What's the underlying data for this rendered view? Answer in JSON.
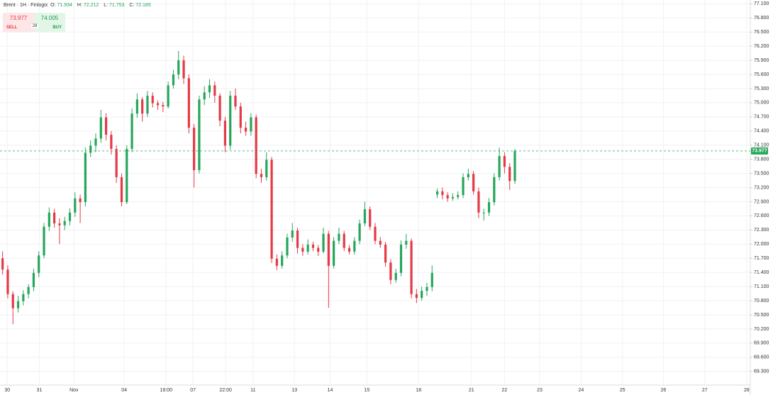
{
  "chart_data": {
    "type": "candlestick",
    "title": "Brent · 1H · Finlogix",
    "ohlc_legend": [
      {
        "label": "O:",
        "value": 71.934
      },
      {
        "label": "H:",
        "value": 72.212
      },
      {
        "label": "L:",
        "value": 71.753
      },
      {
        "label": "C:",
        "value": 72.185
      }
    ],
    "trade_panel": {
      "sell_price": 73.977,
      "buy_price": 74.005,
      "sell_label": "SELL",
      "buy_label": "BUY",
      "spread": 28
    },
    "up_color": "#26a65b",
    "down_color": "#e53945",
    "grid": true,
    "x": [
      0,
      1,
      2,
      3,
      4,
      5,
      6,
      7,
      8,
      9,
      10,
      11,
      12,
      13,
      14,
      15,
      16,
      17,
      18,
      19,
      20,
      21,
      22,
      23,
      24,
      25,
      26,
      27,
      28,
      29,
      30,
      31,
      32,
      33,
      34,
      35,
      36,
      37,
      38,
      39,
      40,
      41,
      42,
      43,
      44,
      45,
      46,
      47,
      48,
      49,
      50,
      51,
      52,
      53,
      54,
      55,
      56,
      57,
      58,
      59,
      60,
      61,
      62,
      63,
      64,
      65,
      66,
      67,
      68,
      69,
      70,
      71,
      72,
      73,
      74,
      75,
      76,
      77,
      78,
      79,
      80,
      81,
      82,
      83,
      84,
      85,
      86,
      87,
      88,
      89,
      90,
      91,
      92,
      93,
      94,
      95,
      96,
      97,
      98,
      99
    ],
    "open": [
      71.7,
      71.46,
      70.94,
      70.64,
      70.79,
      70.94,
      71.09,
      71.39,
      71.76,
      72.37,
      72.67,
      72.44,
      72.4,
      72.49,
      72.67,
      72.97,
      72.89,
      73.94,
      74.09,
      74.24,
      74.69,
      74.32,
      74.02,
      73.42,
      72.89,
      74.02,
      74.77,
      75.07,
      74.77,
      75.15,
      74.99,
      74.95,
      74.92,
      75.37,
      75.6,
      75.9,
      75.52,
      74.47,
      73.57,
      75.07,
      75.22,
      75.37,
      75.15,
      74.62,
      74.09,
      75.15,
      74.92,
      74.47,
      74.39,
      74.69,
      73.49,
      73.42,
      73.79,
      71.69,
      71.54,
      71.76,
      72.14,
      72.29,
      71.92,
      71.84,
      71.99,
      71.92,
      71.84,
      72.22,
      71.54,
      72.07,
      72.22,
      71.92,
      71.84,
      72.07,
      72.44,
      72.74,
      72.37,
      72.07,
      71.99,
      71.61,
      71.24,
      71.39,
      71.99,
      72.07,
      70.94,
      70.86,
      71.01,
      71.09,
      73.05,
      73.12,
      73.04,
      72.97,
      73.0,
      73.04,
      73.42,
      73.49,
      73.12,
      72.67,
      72.67,
      72.89,
      73.42,
      73.87,
      73.64,
      73.34
    ],
    "high": [
      71.85,
      71.55,
      71.0,
      70.9,
      71.02,
      71.15,
      71.48,
      71.85,
      72.45,
      72.78,
      72.75,
      72.55,
      72.58,
      72.76,
      73.1,
      73.05,
      74.05,
      74.2,
      74.35,
      74.85,
      74.78,
      74.4,
      74.1,
      73.5,
      74.1,
      74.88,
      75.2,
      75.12,
      75.25,
      75.22,
      75.05,
      75.02,
      75.45,
      75.7,
      76.1,
      76.0,
      75.6,
      74.55,
      75.15,
      75.35,
      75.5,
      75.45,
      75.2,
      74.7,
      75.25,
      75.3,
      75.0,
      74.6,
      74.78,
      74.75,
      73.6,
      73.95,
      73.85,
      71.78,
      71.85,
      72.22,
      72.45,
      72.35,
      72.0,
      72.1,
      72.05,
      71.98,
      72.35,
      72.28,
      72.15,
      72.35,
      72.28,
      71.98,
      72.15,
      72.52,
      72.9,
      72.8,
      72.45,
      72.15,
      72.05,
      71.68,
      71.48,
      72.08,
      72.22,
      72.12,
      71.05,
      71.1,
      71.18,
      71.55,
      73.18,
      73.2,
      73.1,
      73.08,
      73.12,
      73.5,
      73.6,
      73.55,
      73.2,
      72.75,
      72.98,
      73.5,
      74.05,
      73.95,
      73.72,
      74.02
    ],
    "low": [
      71.35,
      70.85,
      70.3,
      70.55,
      70.7,
      70.85,
      71.0,
      71.3,
      71.7,
      72.28,
      72.35,
      72.0,
      72.3,
      72.4,
      72.58,
      72.45,
      72.8,
      73.85,
      73.95,
      74.15,
      74.2,
      73.9,
      73.3,
      72.8,
      72.85,
      73.95,
      74.68,
      74.6,
      74.7,
      74.9,
      74.85,
      74.8,
      74.88,
      75.3,
      75.5,
      75.4,
      74.35,
      73.2,
      73.5,
      74.95,
      75.1,
      75.0,
      74.5,
      73.95,
      74.0,
      74.85,
      74.35,
      74.3,
      74.3,
      73.4,
      73.3,
      73.35,
      71.6,
      71.45,
      71.48,
      71.7,
      72.05,
      71.8,
      71.75,
      71.78,
      71.85,
      71.75,
      71.8,
      70.65,
      71.48,
      72.0,
      71.85,
      71.78,
      71.78,
      72.0,
      72.38,
      72.3,
      72.0,
      71.92,
      71.52,
      71.15,
      71.18,
      71.32,
      71.9,
      70.85,
      70.75,
      70.8,
      70.9,
      71.0,
      72.98,
      72.95,
      72.9,
      72.92,
      72.95,
      72.98,
      73.35,
      73.05,
      72.55,
      72.5,
      72.6,
      72.82,
      73.35,
      73.5,
      73.15,
      73.28
    ],
    "close": [
      71.46,
      70.94,
      70.64,
      70.79,
      70.94,
      71.09,
      71.39,
      71.76,
      72.37,
      72.67,
      72.44,
      72.4,
      72.49,
      72.67,
      72.97,
      72.89,
      73.94,
      74.09,
      74.24,
      74.69,
      74.32,
      74.02,
      73.42,
      72.89,
      74.02,
      74.77,
      75.07,
      74.77,
      75.15,
      74.99,
      74.95,
      74.92,
      75.37,
      75.6,
      75.9,
      75.52,
      74.47,
      73.57,
      75.07,
      75.22,
      75.37,
      75.15,
      74.62,
      74.09,
      75.15,
      74.92,
      74.47,
      74.39,
      74.69,
      73.49,
      73.42,
      73.79,
      71.69,
      71.54,
      71.76,
      72.14,
      72.29,
      71.92,
      71.84,
      71.99,
      71.92,
      71.84,
      72.22,
      71.54,
      72.07,
      72.22,
      71.92,
      71.84,
      72.07,
      72.44,
      72.74,
      72.37,
      72.07,
      71.99,
      71.61,
      71.24,
      71.39,
      71.99,
      72.07,
      70.94,
      70.86,
      71.01,
      71.09,
      71.39,
      73.12,
      73.04,
      72.97,
      73.0,
      73.04,
      73.42,
      73.49,
      73.12,
      72.67,
      72.67,
      72.89,
      73.42,
      73.87,
      73.64,
      73.34,
      73.977
    ],
    "xlim": [
      -0.5,
      144.5
    ],
    "xticks": [
      {
        "value": 0.9,
        "label": "30"
      },
      {
        "value": 7.1,
        "label": "31"
      },
      {
        "value": 13.8,
        "label": "Nov"
      },
      {
        "value": 23.5,
        "label": "04"
      },
      {
        "value": 31.6,
        "label": "19:00"
      },
      {
        "value": 36.8,
        "label": "07"
      },
      {
        "value": 43.1,
        "label": "22:00"
      },
      {
        "value": 48.4,
        "label": "11"
      },
      {
        "value": 56.4,
        "label": "13"
      },
      {
        "value": 63.3,
        "label": "14"
      },
      {
        "value": 70.4,
        "label": "15"
      },
      {
        "value": 80.4,
        "label": "18"
      },
      {
        "value": 90.6,
        "label": "21"
      },
      {
        "value": 97,
        "label": "22"
      },
      {
        "value": 103.8,
        "label": "23"
      },
      {
        "value": 111.8,
        "label": "24"
      },
      {
        "value": 119.8,
        "label": "25"
      },
      {
        "value": 127.7,
        "label": "26"
      },
      {
        "value": 135.7,
        "label": "27"
      },
      {
        "value": 143.8,
        "label": "28"
      }
    ],
    "ylim": [
      69.01,
      77.18
    ],
    "yticks": [
      {
        "value": 69.3,
        "label": "69.300"
      },
      {
        "value": 69.6,
        "label": "69.600"
      },
      {
        "value": 69.9,
        "label": "69.900"
      },
      {
        "value": 70.2,
        "label": "70.200"
      },
      {
        "value": 70.5,
        "label": "70.500"
      },
      {
        "value": 70.8,
        "label": "70.800"
      },
      {
        "value": 71.1,
        "label": "71.100"
      },
      {
        "value": 71.4,
        "label": "71.400"
      },
      {
        "value": 71.7,
        "label": "71.700"
      },
      {
        "value": 72.0,
        "label": "72.000"
      },
      {
        "value": 72.3,
        "label": "72.300"
      },
      {
        "value": 72.6,
        "label": "72.600"
      },
      {
        "value": 72.9,
        "label": "72.900"
      },
      {
        "value": 73.2,
        "label": "73.200"
      },
      {
        "value": 73.5,
        "label": "73.500"
      },
      {
        "value": 73.8,
        "label": "73.800"
      },
      {
        "value": 74.1,
        "label": "74.100"
      },
      {
        "value": 74.4,
        "label": "74.400"
      },
      {
        "value": 74.7,
        "label": "74.700"
      },
      {
        "value": 75.0,
        "label": "75.000"
      },
      {
        "value": 75.3,
        "label": "75.300"
      },
      {
        "value": 75.6,
        "label": "75.600"
      },
      {
        "value": 75.9,
        "label": "75.900"
      },
      {
        "value": 76.2,
        "label": "76.200"
      },
      {
        "value": 76.5,
        "label": "76.500"
      },
      {
        "value": 76.8,
        "label": "76.800"
      },
      {
        "value": 77.1,
        "label": "77.100"
      }
    ]
  }
}
